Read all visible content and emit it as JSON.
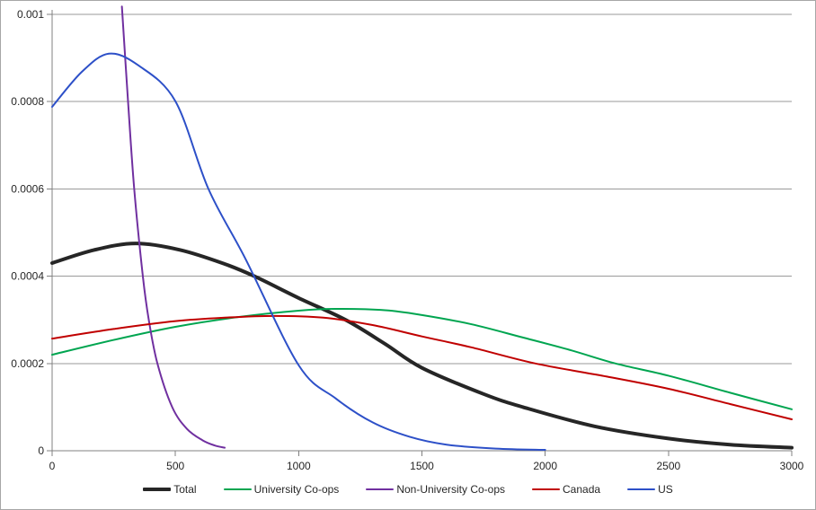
{
  "chart_data": {
    "type": "line",
    "title": "",
    "xlabel": "",
    "ylabel": "",
    "xlim": [
      0,
      3000
    ],
    "ylim": [
      0,
      0.001
    ],
    "x_ticks": [
      0,
      500,
      1000,
      1500,
      2000,
      2500,
      3000
    ],
    "x_tick_labels": [
      "0",
      "500",
      "1000",
      "1500",
      "2000",
      "2500",
      "3000"
    ],
    "y_ticks": [
      0,
      0.0002,
      0.0004,
      0.0006,
      0.0008,
      0.001
    ],
    "y_tick_labels": [
      "0",
      "0.0002",
      "0.0004",
      "0.0006",
      "0.0008",
      "0.001"
    ],
    "grid": "horizontal-only",
    "legend_position": "bottom-center",
    "background_color": "#FFFFFF",
    "gridline_color": "#9A9A9A",
    "axis_color": "#808080",
    "border_color": "#A6A6A6",
    "text_color": "#262626",
    "series": [
      {
        "name": "Total",
        "color": "#262626",
        "line_width": 4,
        "points": [
          [
            0,
            0.00043
          ],
          [
            170,
            0.00046
          ],
          [
            340,
            0.000475
          ],
          [
            520,
            0.00046
          ],
          [
            700,
            0.000428
          ],
          [
            820,
            0.0004
          ],
          [
            1000,
            0.00035
          ],
          [
            1190,
            0.0003
          ],
          [
            1350,
            0.000245
          ],
          [
            1500,
            0.00019
          ],
          [
            1750,
            0.00013
          ],
          [
            1910,
            0.0001
          ],
          [
            2200,
            5.6e-05
          ],
          [
            2500,
            2.8e-05
          ],
          [
            2750,
            1.4e-05
          ],
          [
            3000,
            7e-06
          ]
        ]
      },
      {
        "name": "University Co-ops",
        "color": "#00A550",
        "line_width": 2,
        "points": [
          [
            0,
            0.00022
          ],
          [
            250,
            0.000254
          ],
          [
            500,
            0.000284
          ],
          [
            750,
            0.000306
          ],
          [
            1000,
            0.000321
          ],
          [
            1150,
            0.000325
          ],
          [
            1350,
            0.000322
          ],
          [
            1500,
            0.000311
          ],
          [
            1700,
            0.00029
          ],
          [
            1906,
            0.00026
          ],
          [
            2100,
            0.000231
          ],
          [
            2285,
            0.0002
          ],
          [
            2500,
            0.000172
          ],
          [
            2750,
            0.000133
          ],
          [
            3000,
            9.5e-05
          ]
        ]
      },
      {
        "name": "Non-University Co-ops",
        "color": "#7030A0",
        "line_width": 2,
        "points": [
          [
            283,
            0.001018
          ],
          [
            308,
            0.0008
          ],
          [
            333,
            0.0006
          ],
          [
            368,
            0.0004
          ],
          [
            392,
            0.0003
          ],
          [
            427,
            0.0002
          ],
          [
            487,
            0.0001
          ],
          [
            547,
            5e-05
          ],
          [
            610,
            2.4e-05
          ],
          [
            660,
            1.2e-05
          ],
          [
            700,
            7e-06
          ]
        ]
      },
      {
        "name": "Canada",
        "color": "#C00000",
        "line_width": 2,
        "points": [
          [
            0,
            0.000257
          ],
          [
            250,
            0.000279
          ],
          [
            500,
            0.000297
          ],
          [
            700,
            0.000305
          ],
          [
            900,
            0.000309
          ],
          [
            1100,
            0.000305
          ],
          [
            1300,
            0.000288
          ],
          [
            1500,
            0.000262
          ],
          [
            1700,
            0.000237
          ],
          [
            1960,
            0.0002
          ],
          [
            2250,
            0.00017
          ],
          [
            2500,
            0.000142
          ],
          [
            2750,
            0.000107
          ],
          [
            3000,
            7.2e-05
          ]
        ]
      },
      {
        "name": "US",
        "color": "#2D50C8",
        "line_width": 2,
        "points": [
          [
            0,
            0.000788
          ],
          [
            120,
            0.000868
          ],
          [
            230,
            0.00091
          ],
          [
            350,
            0.000883
          ],
          [
            500,
            0.000801
          ],
          [
            634,
            0.0006
          ],
          [
            784,
            0.00044
          ],
          [
            1000,
            0.000196
          ],
          [
            1150,
            0.00012
          ],
          [
            1300,
            6.5e-05
          ],
          [
            1450,
            3.2e-05
          ],
          [
            1600,
            1.4e-05
          ],
          [
            1800,
            5e-06
          ],
          [
            2000,
            2e-06
          ]
        ]
      }
    ]
  }
}
